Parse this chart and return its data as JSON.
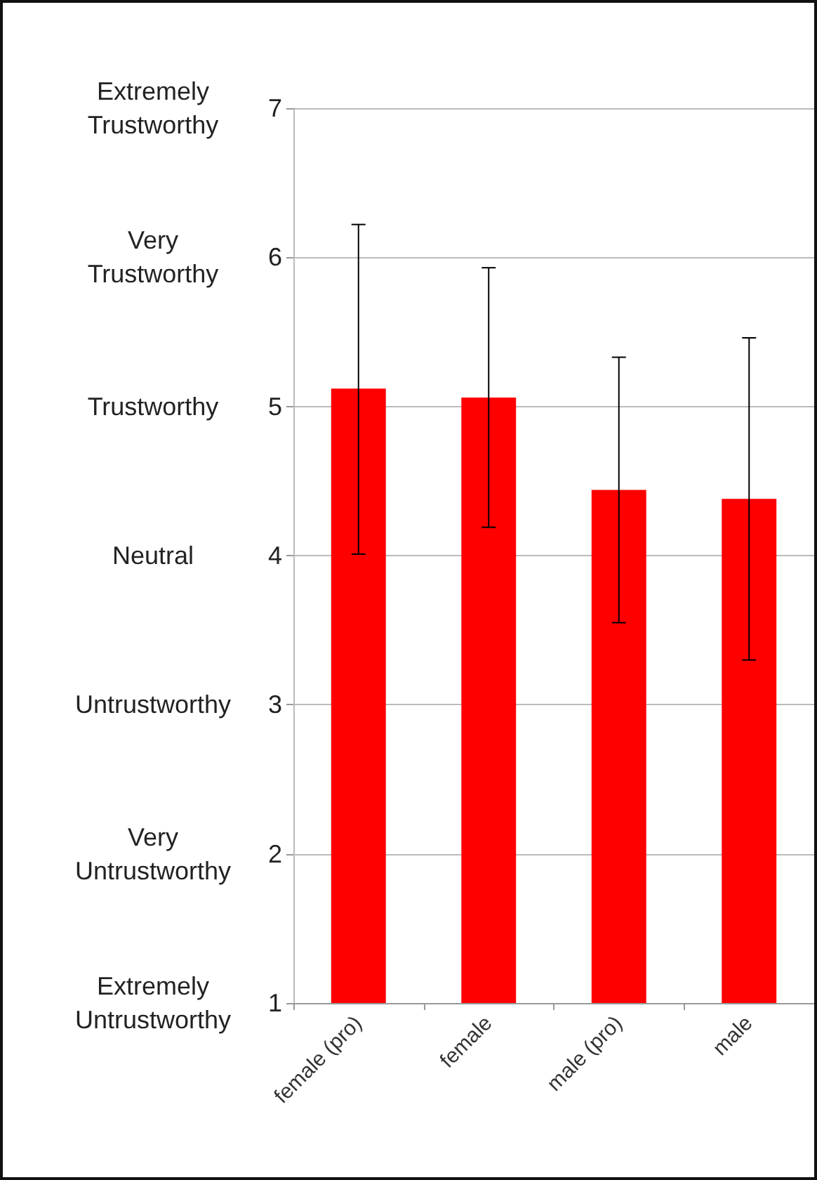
{
  "chart_data": {
    "type": "bar",
    "categories": [
      "female (pro)",
      "female",
      "male (pro)",
      "male"
    ],
    "series": [
      {
        "color": "#ff0000",
        "values": [
          5.12,
          5.06,
          4.44,
          4.38
        ],
        "errors": [
          [
            4.01,
            6.22
          ],
          [
            4.19,
            5.93
          ],
          [
            3.55,
            5.33
          ],
          [
            3.3,
            5.46
          ]
        ]
      }
    ],
    "ylim": [
      1,
      7
    ],
    "yticks": [
      1,
      2,
      3,
      4,
      5,
      6,
      7
    ],
    "annotations": [
      "Extremely Untrustworthy",
      "Very Untrustworthy",
      "Untrustworthy",
      "Neutral",
      "Trustworthy",
      "Very Trustworthy",
      "Extremely Trustworthy"
    ],
    "grid": "y"
  }
}
